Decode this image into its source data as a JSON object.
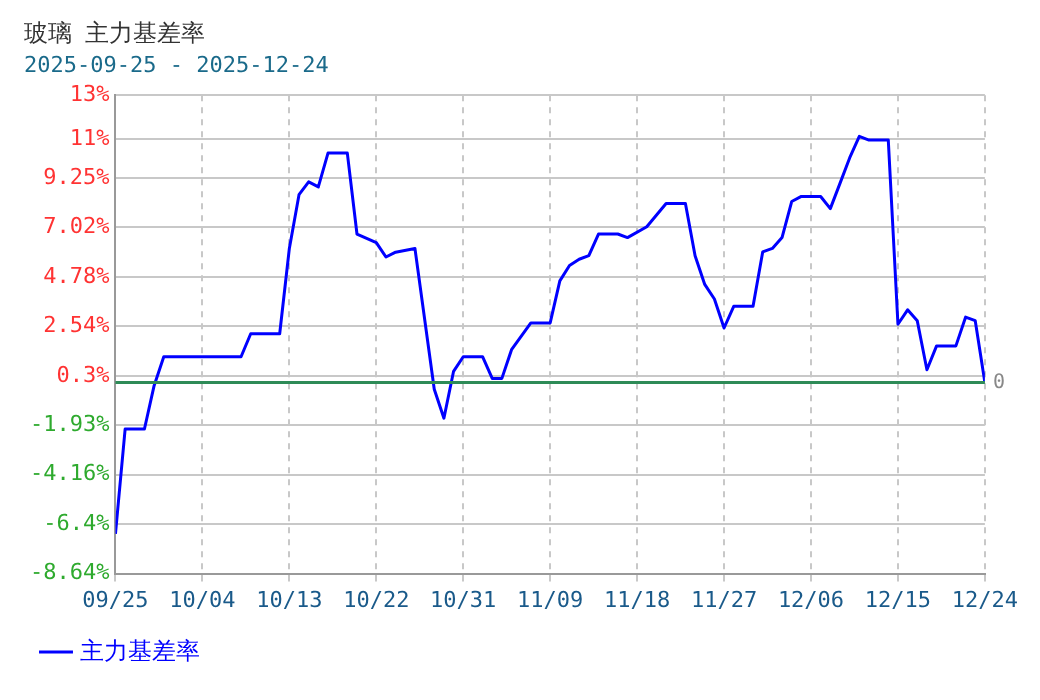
{
  "chart_data": {
    "type": "line",
    "title": "玻璃  主力基差率",
    "subtitle": "2025-09-25 - 2025-12-24",
    "x": [
      "--09-25",
      "--09-26",
      "--09-28",
      "--09-29",
      "--09-30",
      "--10-08",
      "--10-09",
      "--10-12",
      "--10-13",
      "--10-14",
      "--10-15",
      "--10-16",
      "--10-17",
      "--10-19",
      "--10-20",
      "--10-22",
      "--10-23",
      "--10-24",
      "--10-26",
      "--10-28",
      "--10-29",
      "--10-30",
      "--10-31",
      "--11-02",
      "--11-03",
      "--11-04",
      "--11-05",
      "--11-07",
      "--11-09",
      "--11-10",
      "--11-11",
      "--11-12",
      "--11-13",
      "--11-14",
      "--11-16",
      "--11-17",
      "--11-19",
      "--11-21",
      "--11-23",
      "--11-24",
      "--11-25",
      "--11-26",
      "--11-27",
      "--11-28",
      "--11-30",
      "--12-01",
      "--12-02",
      "--12-03",
      "--12-04",
      "--12-05",
      "--12-07",
      "--12-08",
      "--12-09",
      "--12-10",
      "--12-11",
      "--12-12",
      "--12-14",
      "--12-15",
      "--12-16",
      "--12-17",
      "--12-18",
      "--12-19",
      "--12-21",
      "--12-22",
      "--12-23",
      "--12-24"
    ],
    "series": [
      {
        "name": "主力基差率",
        "color": "#0000ff",
        "values": [
          -6.84,
          -2.1,
          -2.1,
          -0.14,
          1.17,
          1.17,
          2.21,
          2.21,
          6.07,
          8.5,
          9.08,
          8.85,
          10.38,
          10.38,
          6.72,
          6.33,
          5.68,
          5.9,
          6.07,
          -0.3,
          -1.61,
          0.51,
          1.17,
          1.17,
          0.19,
          0.19,
          1.49,
          2.7,
          2.7,
          4.6,
          5.3,
          5.58,
          5.74,
          6.72,
          6.72,
          6.56,
          7.05,
          8.1,
          8.1,
          5.74,
          4.44,
          3.78,
          2.47,
          3.45,
          3.45,
          5.91,
          6.07,
          6.56,
          8.19,
          8.42,
          8.42,
          7.87,
          9.01,
          10.16,
          11.14,
          10.97,
          10.97,
          2.64,
          3.29,
          2.8,
          0.58,
          1.66,
          1.66,
          2.96,
          2.8,
          0
        ]
      }
    ],
    "xlim": [
      "--09-25",
      "--12-24"
    ],
    "xticks": [
      {
        "value": "--09-25",
        "label": "09/25"
      },
      {
        "value": "--10-04",
        "label": "10/04"
      },
      {
        "value": "--10-13",
        "label": "10/13"
      },
      {
        "value": "--10-22",
        "label": "10/22"
      },
      {
        "value": "--10-31",
        "label": "10/31"
      },
      {
        "value": "--11-09",
        "label": "11/09"
      },
      {
        "value": "--11-18",
        "label": "11/18"
      },
      {
        "value": "--11-27",
        "label": "11/27"
      },
      {
        "value": "--12-06",
        "label": "12/06"
      },
      {
        "value": "--12-15",
        "label": "12/15"
      },
      {
        "value": "--12-24",
        "label": "12/24"
      }
    ],
    "ylim": [
      -8.64,
      13
    ],
    "yticks": [
      {
        "value": -8.64,
        "label": "-8.64%"
      },
      {
        "value": -6.4,
        "label": "-6.4%"
      },
      {
        "value": -4.16,
        "label": "-4.16%"
      },
      {
        "value": -1.93,
        "label": "-1.93%"
      },
      {
        "value": 0.3,
        "label": "0.3%"
      },
      {
        "value": 2.54,
        "label": "2.54%"
      },
      {
        "value": 4.78,
        "label": "4.78%"
      },
      {
        "value": 7.02,
        "label": "7.02%"
      },
      {
        "value": 9.25,
        "label": "9.25%"
      },
      {
        "value": 11,
        "label": "11%"
      },
      {
        "value": 13,
        "label": "13%"
      }
    ],
    "ref_lines": [
      {
        "axis": "y",
        "value": 0,
        "label": "0",
        "color": "#2e8b57"
      }
    ],
    "grid": true,
    "legend": "bottom left",
    "marker": "none",
    "line_style": "solid"
  }
}
